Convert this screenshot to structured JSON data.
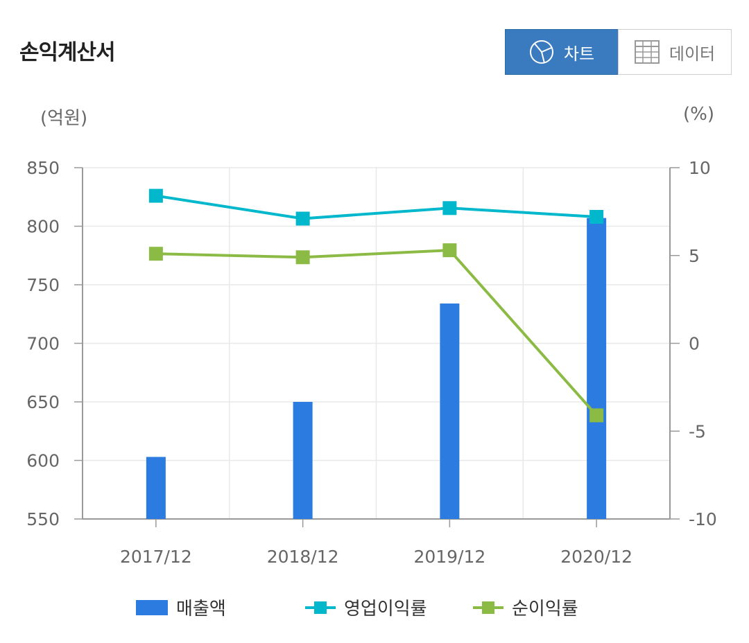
{
  "header": {
    "title": "손익계산서",
    "chart_button": "차트",
    "data_button": "데이터",
    "chart_icon": "pie-chart-icon",
    "data_icon": "table-icon"
  },
  "chart_data": {
    "type": "bar",
    "categories": [
      "2017/12",
      "2018/12",
      "2019/12",
      "2020/12"
    ],
    "y_left": {
      "unit": "(억원)",
      "range": [
        550,
        850
      ],
      "ticks": [
        550,
        600,
        650,
        700,
        750,
        800,
        850
      ]
    },
    "y_right": {
      "unit": "(%)",
      "range": [
        -10,
        10
      ],
      "ticks": [
        -10,
        -5,
        0,
        5,
        10
      ]
    },
    "grid": true,
    "legend_position": "bottom",
    "series": [
      {
        "name": "매출액",
        "type": "bar",
        "axis": "left",
        "color": "#2b7be0",
        "values": [
          603,
          650,
          734,
          807
        ]
      },
      {
        "name": "영업이익률",
        "type": "line",
        "axis": "right",
        "color": "#00b7cc",
        "values": [
          8.4,
          7.1,
          7.7,
          7.2
        ]
      },
      {
        "name": "순이익률",
        "type": "line",
        "axis": "right",
        "color": "#8bbb45",
        "values": [
          5.1,
          4.9,
          5.3,
          -4.1
        ]
      }
    ]
  }
}
